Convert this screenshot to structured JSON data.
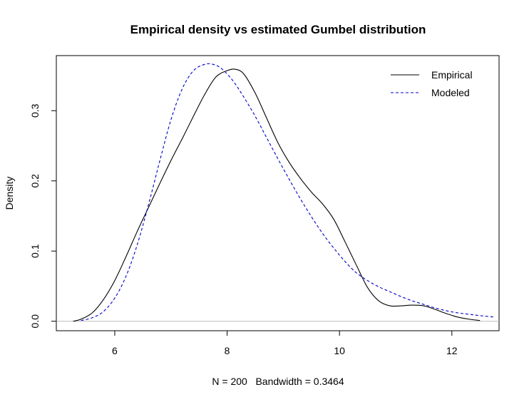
{
  "chart_data": {
    "type": "line",
    "title": "Empirical density vs estimated Gumbel distribution",
    "xlabel": "N = 200   Bandwidth = 0.3464",
    "ylabel": "Density",
    "xlim": [
      4.96,
      12.84
    ],
    "ylim": [
      -0.0135,
      0.3785
    ],
    "x_ticks": [
      6,
      8,
      10,
      12
    ],
    "y_ticks": [
      0.0,
      0.1,
      0.2,
      0.3
    ],
    "x_tick_labels": [
      "6",
      "8",
      "10",
      "12"
    ],
    "y_tick_labels": [
      "0.0",
      "0.1",
      "0.2",
      "0.3"
    ],
    "grid": false,
    "baseline": 0,
    "legend_position": "top-right",
    "series": [
      {
        "name": "Empirical",
        "color": "#000000",
        "line_style": "solid",
        "x": [
          5.26,
          5.4,
          5.6,
          5.8,
          6.0,
          6.2,
          6.4,
          6.6,
          6.8,
          7.0,
          7.2,
          7.4,
          7.6,
          7.8,
          8.0,
          8.15,
          8.3,
          8.5,
          8.7,
          8.9,
          9.1,
          9.3,
          9.5,
          9.7,
          9.9,
          10.1,
          10.3,
          10.5,
          10.7,
          10.9,
          11.1,
          11.3,
          11.5,
          11.7,
          11.9,
          12.1,
          12.3,
          12.5
        ],
        "y": [
          0.0,
          0.003,
          0.012,
          0.031,
          0.058,
          0.092,
          0.128,
          0.162,
          0.196,
          0.229,
          0.26,
          0.292,
          0.323,
          0.348,
          0.357,
          0.359,
          0.352,
          0.325,
          0.29,
          0.255,
          0.227,
          0.204,
          0.184,
          0.167,
          0.145,
          0.113,
          0.08,
          0.048,
          0.029,
          0.022,
          0.022,
          0.023,
          0.022,
          0.017,
          0.011,
          0.006,
          0.003,
          0.001
        ]
      },
      {
        "name": "Modeled",
        "color": "#0000cc",
        "line_style": "dashed",
        "x": [
          5.4,
          5.6,
          5.8,
          6.0,
          6.2,
          6.4,
          6.6,
          6.8,
          7.0,
          7.2,
          7.4,
          7.6,
          7.75,
          7.9,
          8.1,
          8.3,
          8.5,
          8.7,
          8.9,
          9.1,
          9.3,
          9.5,
          9.7,
          9.9,
          10.1,
          10.3,
          10.5,
          10.7,
          10.9,
          11.1,
          11.3,
          11.5,
          11.7,
          11.9,
          12.1,
          12.3,
          12.5,
          12.75
        ],
        "y": [
          0.001,
          0.005,
          0.014,
          0.033,
          0.064,
          0.109,
          0.166,
          0.228,
          0.287,
          0.331,
          0.357,
          0.366,
          0.366,
          0.36,
          0.343,
          0.319,
          0.292,
          0.262,
          0.232,
          0.203,
          0.175,
          0.149,
          0.125,
          0.104,
          0.085,
          0.069,
          0.058,
          0.049,
          0.042,
          0.035,
          0.029,
          0.024,
          0.019,
          0.015,
          0.012,
          0.01,
          0.008,
          0.006
        ]
      }
    ]
  }
}
